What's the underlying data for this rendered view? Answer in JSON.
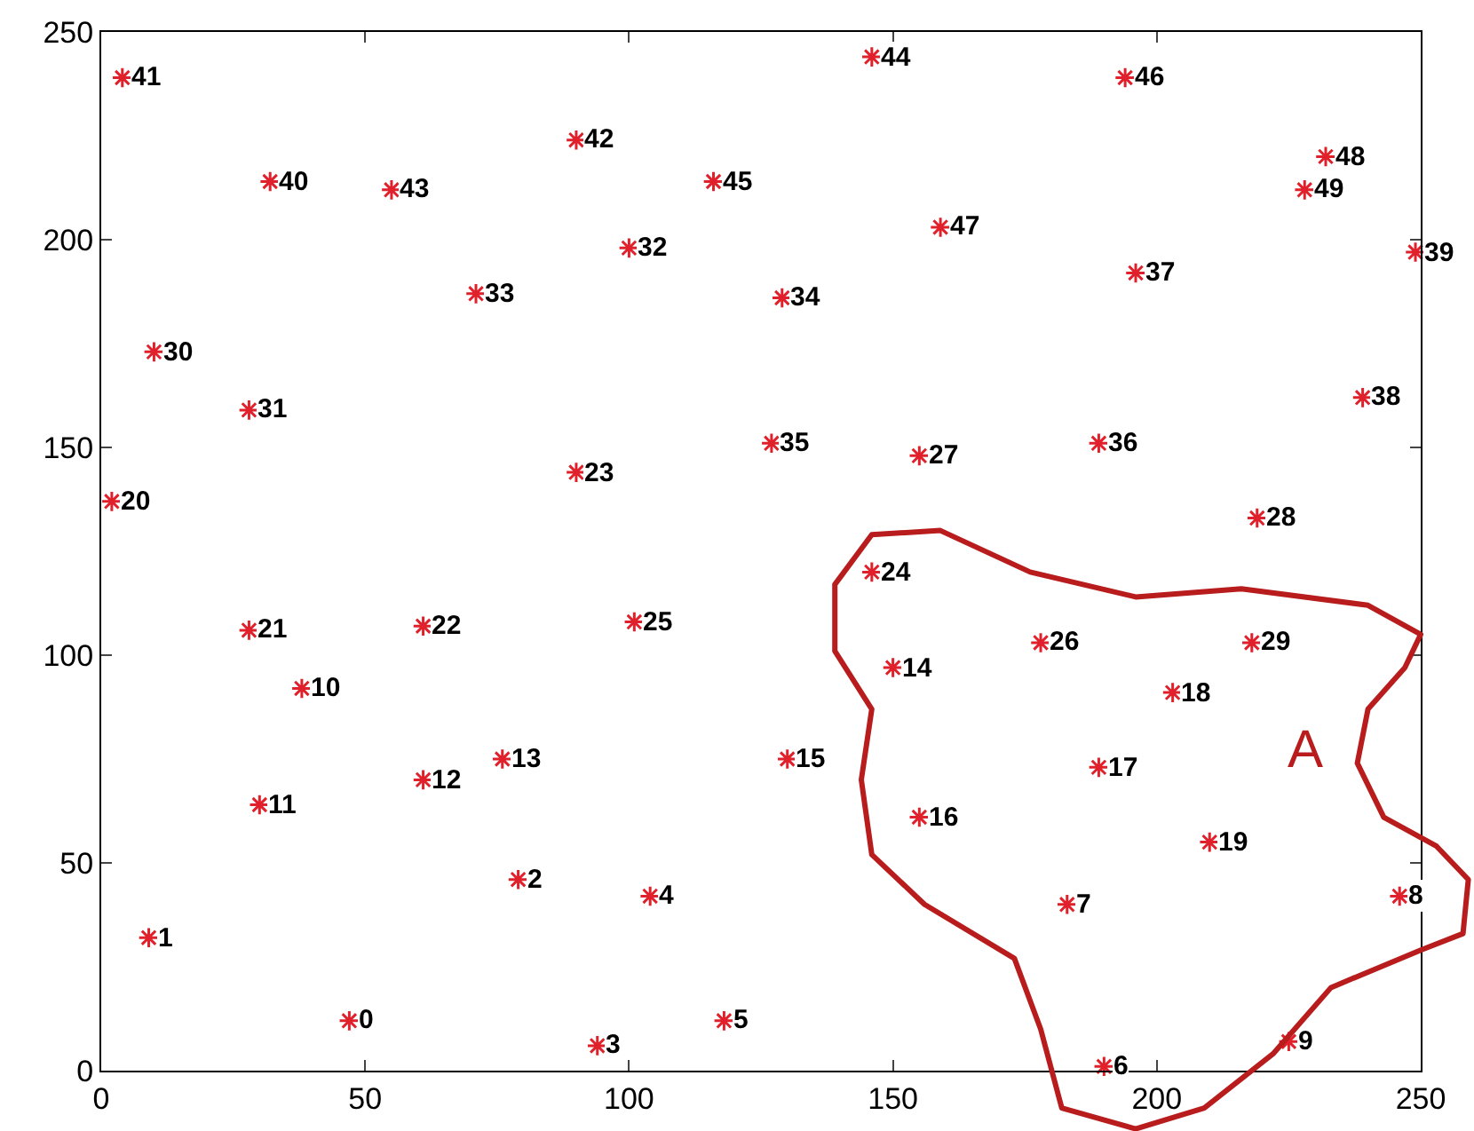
{
  "chart_data": {
    "type": "scatter",
    "x": [
      47,
      9,
      79,
      94,
      104,
      118,
      190,
      183,
      246,
      225,
      38,
      30,
      61,
      76,
      150,
      130,
      155,
      189,
      203,
      210,
      2,
      28,
      61,
      90,
      146,
      101,
      178,
      155,
      219,
      218,
      10,
      28,
      100,
      71,
      129,
      127,
      189,
      196,
      239,
      249,
      32,
      4,
      90,
      55,
      146,
      116,
      194,
      159,
      232,
      228
    ],
    "values": [
      12,
      32,
      46,
      6,
      42,
      12,
      1,
      40,
      42,
      7,
      92,
      64,
      70,
      75,
      97,
      75,
      61,
      73,
      91,
      55,
      137,
      106,
      107,
      144,
      120,
      108,
      103,
      148,
      133,
      103,
      173,
      159,
      198,
      187,
      186,
      151,
      151,
      192,
      162,
      197,
      214,
      239,
      224,
      212,
      244,
      214,
      239,
      203,
      220,
      212
    ],
    "color": "#e0202a",
    "marker": "cross",
    "xlim": [
      0,
      250
    ],
    "ylim": [
      0,
      250
    ],
    "xticks": [
      0,
      50,
      100,
      150,
      200,
      250
    ],
    "yticks": [
      0,
      50,
      100,
      150,
      200,
      250
    ],
    "grid": false,
    "legend": false,
    "annotations": [
      {
        "text": "0",
        "x": 47,
        "y": 12
      },
      {
        "text": "1",
        "x": 9,
        "y": 32
      },
      {
        "text": "2",
        "x": 79,
        "y": 46
      },
      {
        "text": "3",
        "x": 94,
        "y": 6
      },
      {
        "text": "4",
        "x": 104,
        "y": 42
      },
      {
        "text": "5",
        "x": 118,
        "y": 12
      },
      {
        "text": "6",
        "x": 190,
        "y": 1
      },
      {
        "text": "7",
        "x": 183,
        "y": 40
      },
      {
        "text": "8",
        "x": 246,
        "y": 42
      },
      {
        "text": "9",
        "x": 225,
        "y": 7
      },
      {
        "text": "10",
        "x": 38,
        "y": 92
      },
      {
        "text": "11",
        "x": 30,
        "y": 64
      },
      {
        "text": "12",
        "x": 61,
        "y": 70
      },
      {
        "text": "13",
        "x": 76,
        "y": 75
      },
      {
        "text": "14",
        "x": 150,
        "y": 97
      },
      {
        "text": "15",
        "x": 130,
        "y": 75
      },
      {
        "text": "16",
        "x": 155,
        "y": 61
      },
      {
        "text": "17",
        "x": 189,
        "y": 73
      },
      {
        "text": "18",
        "x": 203,
        "y": 91
      },
      {
        "text": "19",
        "x": 210,
        "y": 55
      },
      {
        "text": "20",
        "x": 2,
        "y": 137
      },
      {
        "text": "21",
        "x": 28,
        "y": 106
      },
      {
        "text": "22",
        "x": 61,
        "y": 107
      },
      {
        "text": "23",
        "x": 90,
        "y": 144
      },
      {
        "text": "24",
        "x": 146,
        "y": 120
      },
      {
        "text": "25",
        "x": 101,
        "y": 108
      },
      {
        "text": "26",
        "x": 178,
        "y": 103
      },
      {
        "text": "27",
        "x": 155,
        "y": 148
      },
      {
        "text": "28",
        "x": 219,
        "y": 133
      },
      {
        "text": "29",
        "x": 218,
        "y": 103
      },
      {
        "text": "30",
        "x": 10,
        "y": 173
      },
      {
        "text": "31",
        "x": 28,
        "y": 159
      },
      {
        "text": "32",
        "x": 100,
        "y": 198
      },
      {
        "text": "33",
        "x": 71,
        "y": 187
      },
      {
        "text": "34",
        "x": 129,
        "y": 186
      },
      {
        "text": "35",
        "x": 127,
        "y": 151
      },
      {
        "text": "36",
        "x": 189,
        "y": 151
      },
      {
        "text": "37",
        "x": 196,
        "y": 192
      },
      {
        "text": "38",
        "x": 239,
        "y": 162
      },
      {
        "text": "39",
        "x": 249,
        "y": 197
      },
      {
        "text": "40",
        "x": 32,
        "y": 214
      },
      {
        "text": "41",
        "x": 4,
        "y": 239
      },
      {
        "text": "42",
        "x": 90,
        "y": 224
      },
      {
        "text": "43",
        "x": 55,
        "y": 212
      },
      {
        "text": "44",
        "x": 146,
        "y": 244
      },
      {
        "text": "45",
        "x": 116,
        "y": 214
      },
      {
        "text": "46",
        "x": 194,
        "y": 239
      },
      {
        "text": "47",
        "x": 159,
        "y": 203
      },
      {
        "text": "48",
        "x": 232,
        "y": 220
      },
      {
        "text": "49",
        "x": 228,
        "y": 212
      },
      "A"
    ]
  }
}
